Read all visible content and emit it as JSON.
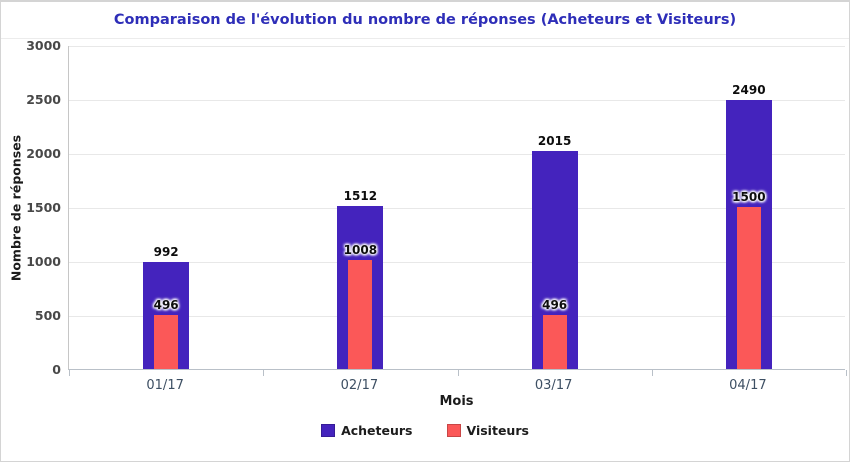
{
  "chart_data": {
    "type": "bar",
    "title": "Comparaison de l'évolution du nombre de réponses (Acheteurs et Visiteurs)",
    "categories": [
      "01/17",
      "02/17",
      "03/17",
      "04/17"
    ],
    "series": [
      {
        "name": "Acheteurs",
        "color": "#4423bd",
        "values": [
          992,
          1512,
          2015,
          2490
        ]
      },
      {
        "name": "Visiteurs",
        "color": "#fb5858",
        "values": [
          496,
          1008,
          496,
          1500
        ]
      }
    ],
    "xlabel": "Mois",
    "ylabel": "Nombre de réponses",
    "ylim": [
      0,
      3000
    ],
    "yticks": [
      0,
      500,
      1000,
      1500,
      2000,
      2500,
      3000
    ],
    "grid": true,
    "legend_position": "bottom",
    "bar_style": "overlaid-nested",
    "value_labels": true
  },
  "colors": {
    "title": "#2e2eb8",
    "acheteurs": "#4423bd",
    "visiteurs": "#fb5858",
    "tick_label": "#3d4f63",
    "ytick_label": "#484848",
    "gridline": "#e8e8e8",
    "axis_line": "#b9c0c8",
    "value_label": "#0d0d0d"
  }
}
